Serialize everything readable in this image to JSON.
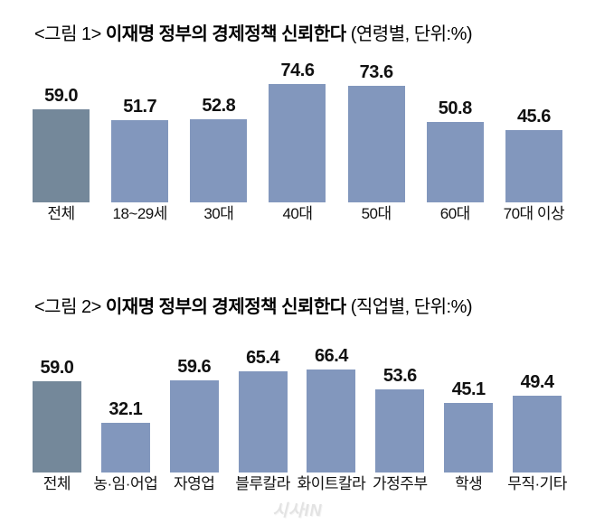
{
  "watermark": "시사IN",
  "colors": {
    "bar_total": "#74889A",
    "bar_default": "#8297BD",
    "text": "#111111",
    "watermark": "#E3E3E3"
  },
  "chart_data": [
    {
      "type": "bar",
      "title_prefix": "<그림 1>",
      "title_main": "이재명 정부의 경제정책 신뢰한다",
      "title_suffix": "(연령별, 단위:%)",
      "categories": [
        "전체",
        "18~29세",
        "30대",
        "40대",
        "50대",
        "60대",
        "70대 이상"
      ],
      "values": [
        59.0,
        51.7,
        52.8,
        74.6,
        73.6,
        50.8,
        45.6
      ],
      "highlight_index": 0,
      "value_decimals": 1,
      "unit": "%",
      "ylim": [
        0,
        80
      ],
      "grid": false,
      "legend": "none",
      "value_labels": "above-bars"
    },
    {
      "type": "bar",
      "title_prefix": "<그림 2>",
      "title_main": "이재명 정부의 경제정책 신뢰한다",
      "title_suffix": "(직업별, 단위:%)",
      "categories": [
        "전체",
        "농·임·어업",
        "자영업",
        "블루칼라",
        "화이트칼라",
        "가정주부",
        "학생",
        "무직·기타"
      ],
      "values": [
        59.0,
        32.1,
        59.6,
        65.4,
        66.4,
        53.6,
        45.1,
        49.4
      ],
      "highlight_index": 0,
      "value_decimals": 1,
      "unit": "%",
      "ylim": [
        0,
        80
      ],
      "grid": false,
      "legend": "none",
      "value_labels": "above-bars"
    }
  ]
}
